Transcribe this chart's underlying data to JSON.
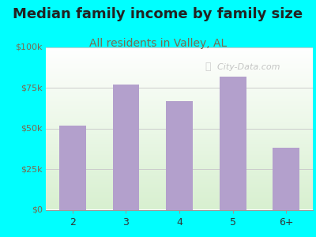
{
  "title": "Median family income by family size",
  "subtitle": "All residents in Valley, AL",
  "categories": [
    "2",
    "3",
    "4",
    "5",
    "6+"
  ],
  "values": [
    52000,
    77000,
    67000,
    82000,
    38000
  ],
  "bar_color": "#b3a0cc",
  "background_color": "#00ffff",
  "ylim": [
    0,
    100000
  ],
  "yticks": [
    0,
    25000,
    50000,
    75000,
    100000
  ],
  "ytick_labels": [
    "$0",
    "$25k",
    "$50k",
    "$75k",
    "$100k"
  ],
  "title_fontsize": 13,
  "subtitle_fontsize": 10,
  "title_color": "#222222",
  "subtitle_color": "#7a6a50",
  "ytick_color": "#7a6a50",
  "xtick_color": "#333333",
  "grid_color": "#cccccc",
  "watermark_text": "  City-Data.com",
  "watermark_color": "#bbbbbb",
  "plot_bg_top": "#ffffff",
  "plot_bg_bottom": "#d8efd0"
}
